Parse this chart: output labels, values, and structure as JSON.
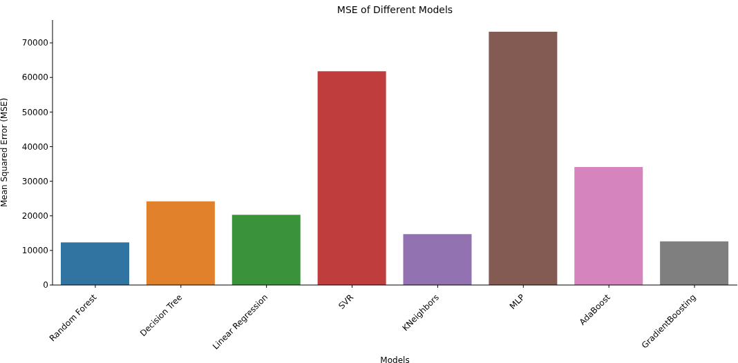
{
  "chart_data": {
    "type": "bar",
    "title": "MSE of Different Models",
    "xlabel": "Models",
    "ylabel": "Mean Squared Error (MSE)",
    "categories": [
      "Random Forest",
      "Decision Tree",
      "Linear Regression",
      "SVR",
      "KNeighbors",
      "MLP",
      "AdaBoost",
      "GradientBoosting"
    ],
    "values": [
      12300,
      24200,
      20300,
      61800,
      14700,
      73200,
      34100,
      12600
    ],
    "colors": [
      "#3274a1",
      "#e1812c",
      "#3a923a",
      "#c03d3e",
      "#9372b2",
      "#845b53",
      "#d684bd",
      "#7f7f7f"
    ],
    "ylim": [
      0,
      76600
    ],
    "yticks": [
      0,
      10000,
      20000,
      30000,
      40000,
      50000,
      60000,
      70000
    ],
    "grid": false
  }
}
